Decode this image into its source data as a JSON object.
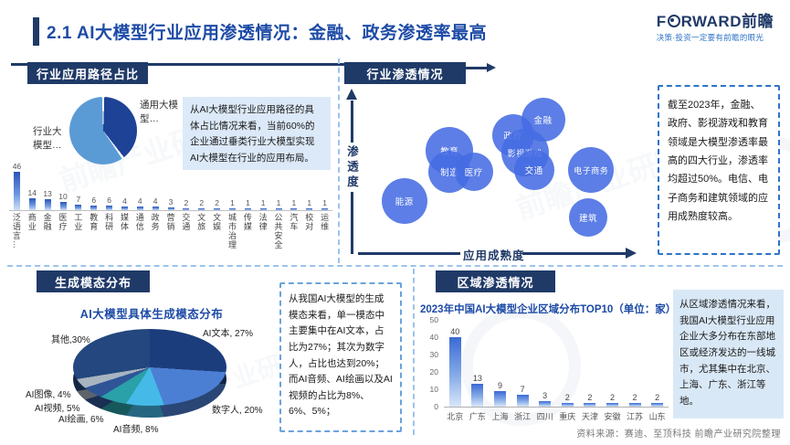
{
  "watermark": "前瞻产业研究院",
  "header": {
    "title": "2.1 AI大模型行业应用渗透情况：金融、政务渗透率最高",
    "logo_f": "F",
    "logo_rest": "RWARD",
    "logo_cn": "前瞻",
    "tagline": "决策·投资一定要有前瞻的眼光"
  },
  "panels": {
    "app_path": {
      "banner": "行业应用路径占比",
      "note": "从AI大模型行业应用路径的具体占比情况来看，当前60%的企业通过垂类行业大模型实现AI大模型在行业的应用布局。"
    },
    "penetration": {
      "banner": "行业渗透情况",
      "xlabel": "应用成熟度",
      "ylabel": "渗透度",
      "note": "截至2023年，金融、政府、影视游戏和教育领域是大模型渗透率最高的四大行业，渗透率均超过50%。电信、电子商务和建筑领域的应用成熟度较高。"
    },
    "modality": {
      "banner": "生成模态分布",
      "title": "AI大模型具体生成模态分布",
      "note": "从我国AI大模型的生成模态来看，单一模态中主要集中在AI文本，占比为27%；其次为数字人，占比也达到20%；而AI音频、AI绘画以及AI视频的占比为8%、6%、5%；"
    },
    "regional": {
      "banner": "区域渗透情况",
      "title": "2023年中国AI大模型企业区域分布TOP10（单位：家）",
      "note": "从区域渗透情况来看，我国AI大模型行业应用企业大多分布在东部地区或经济发达的一线城市，尤其集中在北京、上海、广东、浙江等地。"
    }
  },
  "source": "资料来源：赛迪、至顶科技  前瞻产业研究院整理",
  "chart_data": [
    {
      "id": "path-pie",
      "type": "pie",
      "title": "行业应用路径占比",
      "categories": [
        "通用大模型",
        "行业大模型"
      ],
      "values": [
        40,
        60
      ],
      "colors": [
        "#1e4296",
        "#5b9bd5"
      ],
      "display_labels": [
        "通用大模型…",
        "行业大模型…"
      ]
    },
    {
      "id": "path-bar",
      "type": "bar",
      "categories": [
        "泛语言…",
        "商业",
        "金融",
        "医疗",
        "工业",
        "教育",
        "科研",
        "媒体",
        "通信",
        "政务",
        "营销",
        "交通",
        "文旅",
        "文娱",
        "城市治理",
        "传媒",
        "法律",
        "公共安全",
        "汽车",
        "校对",
        "运维"
      ],
      "values": [
        46,
        14,
        13,
        10,
        7,
        6,
        6,
        4,
        4,
        4,
        3,
        2,
        2,
        2,
        1,
        1,
        1,
        1,
        1,
        1,
        1
      ]
    },
    {
      "id": "bubble",
      "type": "scatter",
      "title": "行业渗透情况",
      "xlabel": "应用成熟度",
      "ylabel": "渗透度",
      "points": [
        {
          "label": "能源",
          "x": 19,
          "y": 34,
          "r": 25
        },
        {
          "label": "教育",
          "x": 34,
          "y": 63,
          "r": 26
        },
        {
          "label": "制造",
          "x": 34,
          "y": 51,
          "r": 23
        },
        {
          "label": "医疗",
          "x": 42,
          "y": 51,
          "r": 21
        },
        {
          "label": "政府",
          "x": 55,
          "y": 72,
          "r": 23
        },
        {
          "label": "影视游戏",
          "x": 59,
          "y": 62,
          "r": 26
        },
        {
          "label": "金融",
          "x": 65,
          "y": 81,
          "r": 24
        },
        {
          "label": "交通",
          "x": 62,
          "y": 52,
          "r": 22
        },
        {
          "label": "电子商务",
          "x": 81,
          "y": 52,
          "r": 25
        },
        {
          "label": "建筑",
          "x": 80,
          "y": 25,
          "r": 21
        }
      ]
    },
    {
      "id": "modality-pie",
      "type": "pie",
      "title": "AI大模型具体生成模态分布",
      "categories": [
        "AI文本",
        "数字人",
        "AI音频",
        "AI绘画",
        "AI视频",
        "AI图像",
        "其他"
      ],
      "values": [
        27,
        20,
        8,
        6,
        5,
        4,
        30
      ],
      "colors": [
        "#1c3d7c",
        "#4b7fd4",
        "#45bae8",
        "#2aa0a8",
        "#2f5597",
        "#a8b4c0",
        "#23477e"
      ],
      "label_texts": [
        "AI文本, 27%",
        "数字人, 20%",
        "AI音频, 8%",
        "AI绘画, 6%",
        "AI视频, 5%",
        "AI图像, 4%",
        "其他,30%"
      ]
    },
    {
      "id": "region-bar",
      "type": "bar",
      "title": "2023年中国AI大模型企业区域分布TOP10",
      "unit": "家",
      "categories": [
        "北京",
        "广东",
        "上海",
        "浙江",
        "四川",
        "重庆",
        "天津",
        "安徽",
        "江苏",
        "山东"
      ],
      "values": [
        40,
        13,
        9,
        7,
        3,
        2,
        2,
        2,
        2,
        2
      ],
      "ylim": [
        0,
        50
      ],
      "yticks": [
        0,
        10,
        20,
        30,
        40,
        50
      ]
    }
  ]
}
